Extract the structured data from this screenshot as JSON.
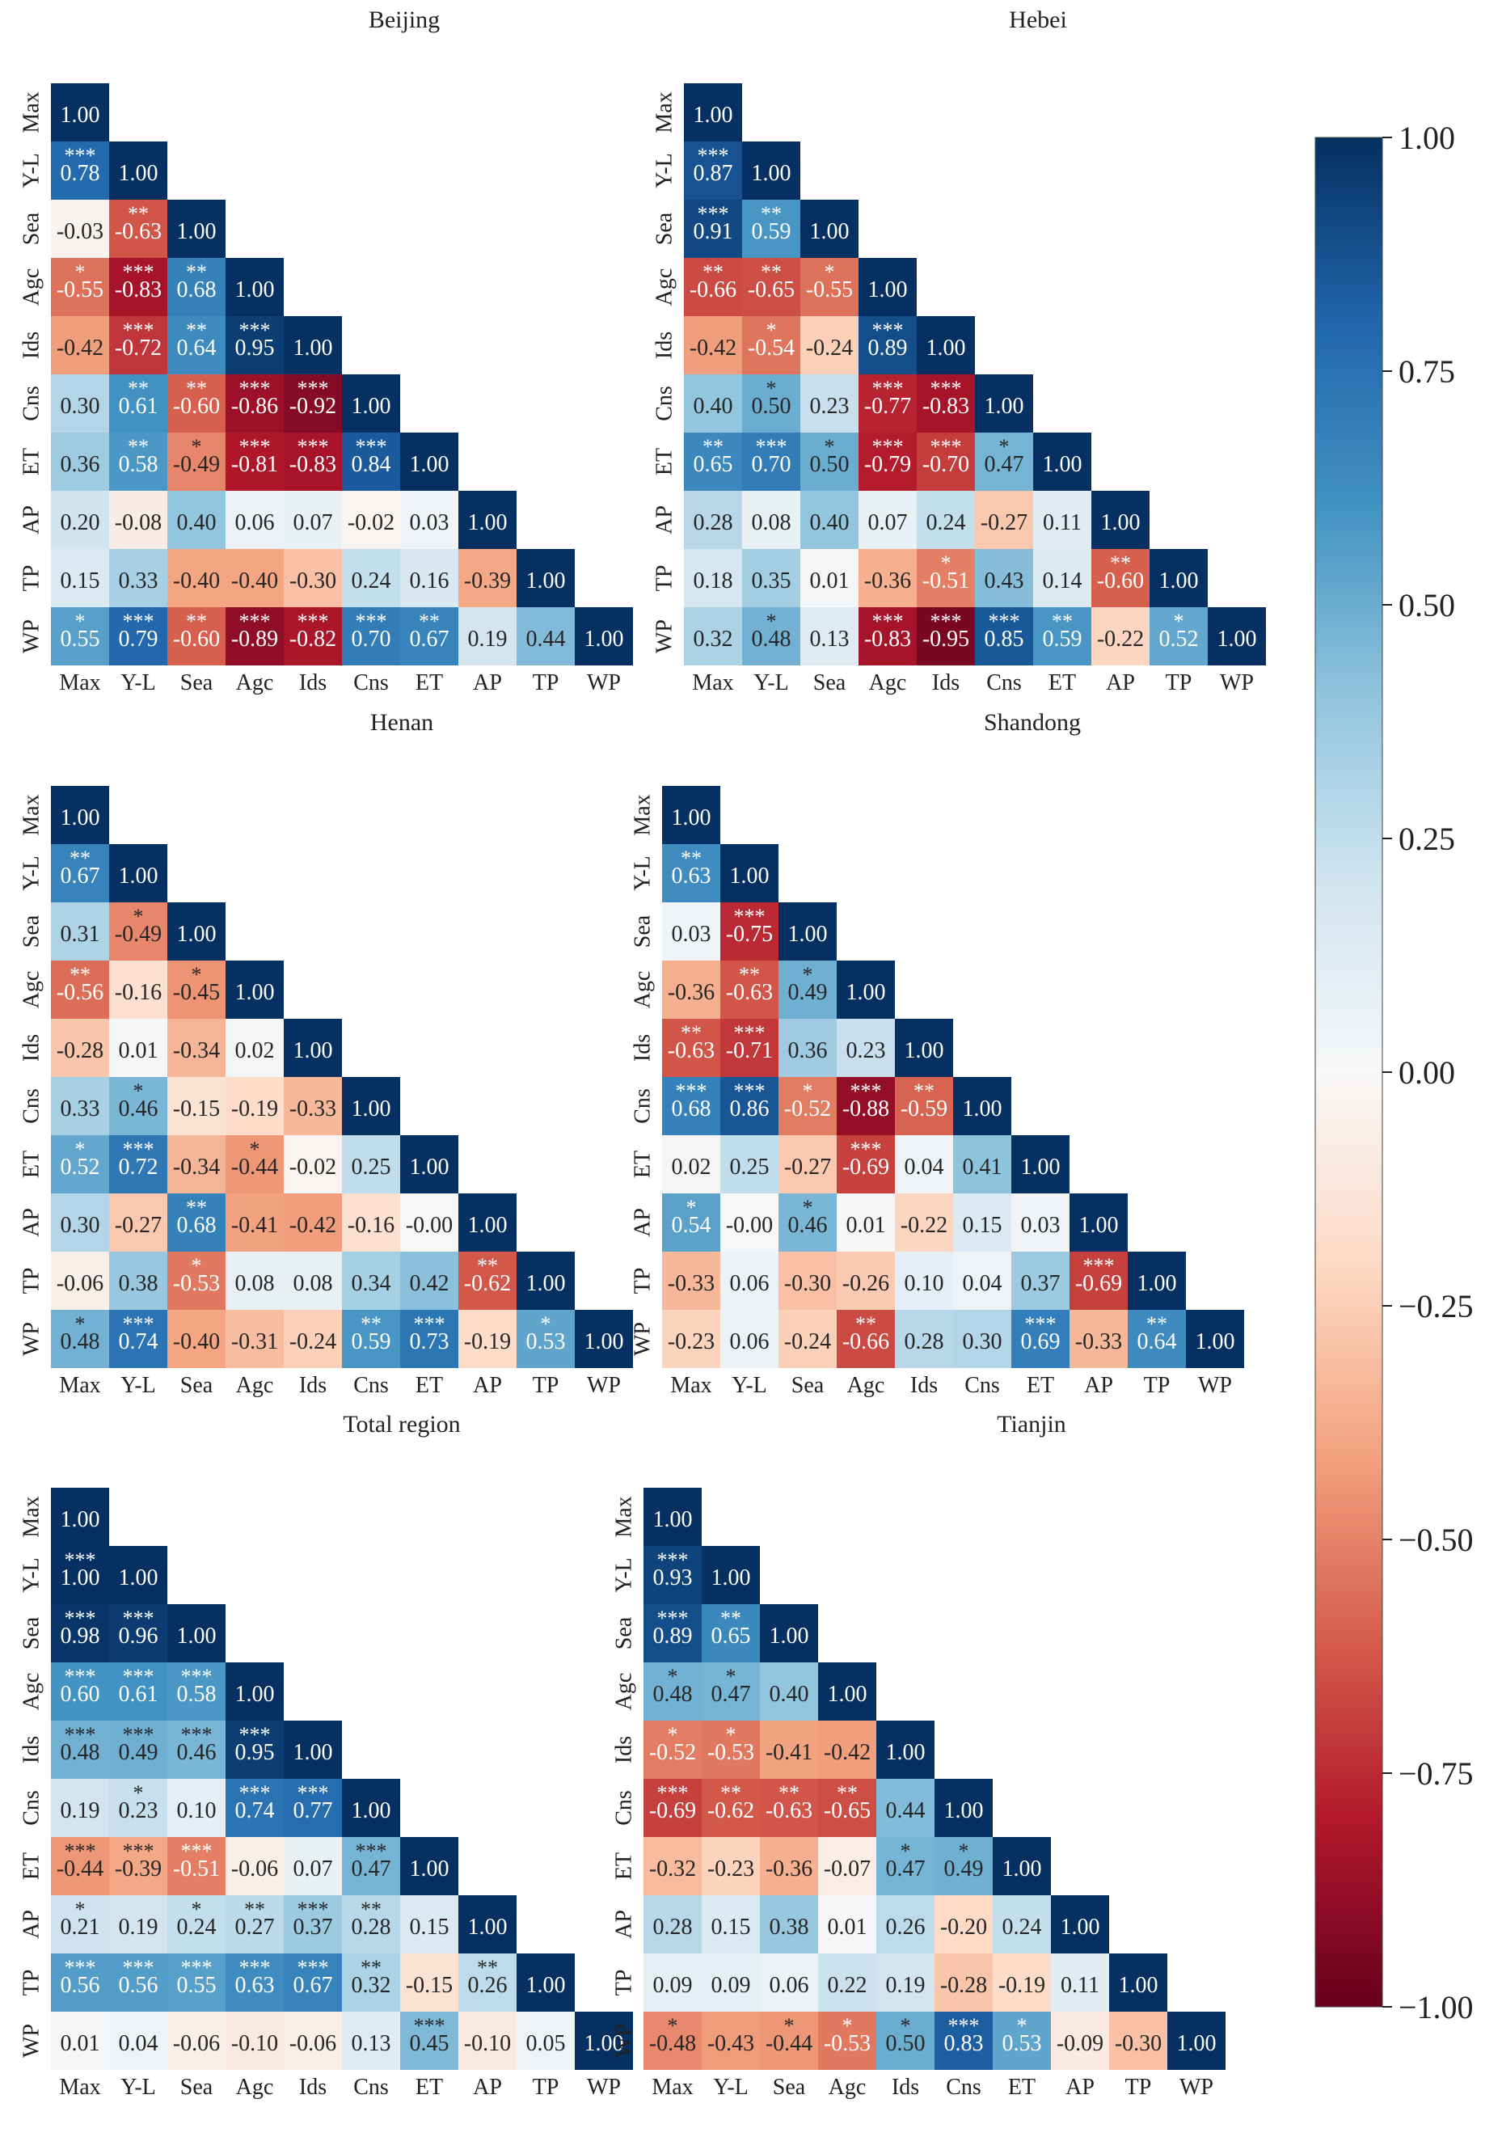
{
  "chart_data": [
    {
      "type": "heatmap",
      "title": "Beijing",
      "variables": [
        "Max",
        "Y-L",
        "Sea",
        "Agc",
        "Ids",
        "Cns",
        "ET",
        "AP",
        "TP",
        "WP"
      ],
      "matrix": [
        [
          "1.00"
        ],
        [
          "0.78",
          "1.00"
        ],
        [
          "-0.03",
          "-0.63",
          "1.00"
        ],
        [
          "-0.55",
          "-0.83",
          "0.68",
          "1.00"
        ],
        [
          "-0.42",
          "-0.72",
          "0.64",
          "0.95",
          "1.00"
        ],
        [
          "0.30",
          "0.61",
          "-0.60",
          "-0.86",
          "-0.92",
          "1.00"
        ],
        [
          "0.36",
          "0.58",
          "-0.49",
          "-0.81",
          "-0.83",
          "0.84",
          "1.00"
        ],
        [
          "0.20",
          "-0.08",
          "0.40",
          "0.06",
          "0.07",
          "-0.02",
          "0.03",
          "1.00"
        ],
        [
          "0.15",
          "0.33",
          "-0.40",
          "-0.40",
          "-0.30",
          "0.24",
          "0.16",
          "-0.39",
          "1.00"
        ],
        [
          "0.55",
          "0.79",
          "-0.60",
          "-0.89",
          "-0.82",
          "0.70",
          "0.67",
          "0.19",
          "0.44",
          "1.00"
        ]
      ],
      "significance": [
        [
          ""
        ],
        [
          "***",
          ""
        ],
        [
          "",
          "**",
          ""
        ],
        [
          "*",
          "***",
          "**",
          ""
        ],
        [
          "",
          "***",
          "**",
          "***",
          ""
        ],
        [
          "",
          "**",
          "**",
          "***",
          "***",
          ""
        ],
        [
          "",
          "**",
          "*",
          "***",
          "***",
          "***",
          ""
        ],
        [
          "",
          "",
          "",
          "",
          "",
          "",
          "",
          ""
        ],
        [
          "",
          "",
          "",
          "",
          "",
          "",
          "",
          "",
          ""
        ],
        [
          "*",
          "***",
          "**",
          "***",
          "***",
          "***",
          "**",
          "",
          "",
          ""
        ]
      ]
    },
    {
      "type": "heatmap",
      "title": "Hebei",
      "variables": [
        "Max",
        "Y-L",
        "Sea",
        "Agc",
        "Ids",
        "Cns",
        "ET",
        "AP",
        "TP",
        "WP"
      ],
      "matrix": [
        [
          "1.00"
        ],
        [
          "0.87",
          "1.00"
        ],
        [
          "0.91",
          "0.59",
          "1.00"
        ],
        [
          "-0.66",
          "-0.65",
          "-0.55",
          "1.00"
        ],
        [
          "-0.42",
          "-0.54",
          "-0.24",
          "0.89",
          "1.00"
        ],
        [
          "0.40",
          "0.50",
          "0.23",
          "-0.77",
          "-0.83",
          "1.00"
        ],
        [
          "0.65",
          "0.70",
          "0.50",
          "-0.79",
          "-0.70",
          "0.47",
          "1.00"
        ],
        [
          "0.28",
          "0.08",
          "0.40",
          "0.07",
          "0.24",
          "-0.27",
          "0.11",
          "1.00"
        ],
        [
          "0.18",
          "0.35",
          "0.01",
          "-0.36",
          "-0.51",
          "0.43",
          "0.14",
          "-0.60",
          "1.00"
        ],
        [
          "0.32",
          "0.48",
          "0.13",
          "-0.83",
          "-0.95",
          "0.85",
          "0.59",
          "-0.22",
          "0.52",
          "1.00"
        ]
      ],
      "significance": [
        [
          ""
        ],
        [
          "***",
          ""
        ],
        [
          "***",
          "**",
          ""
        ],
        [
          "**",
          "**",
          "*",
          ""
        ],
        [
          "",
          "*",
          "",
          "***",
          ""
        ],
        [
          "",
          "*",
          "",
          "***",
          "***",
          ""
        ],
        [
          "**",
          "***",
          "*",
          "***",
          "***",
          "*",
          ""
        ],
        [
          "",
          "",
          "",
          "",
          "",
          "",
          "",
          ""
        ],
        [
          "",
          "",
          "",
          "",
          "*",
          "",
          "",
          "**",
          ""
        ],
        [
          "",
          "*",
          "",
          "***",
          "***",
          "***",
          "**",
          "",
          "*",
          ""
        ]
      ]
    },
    {
      "type": "heatmap",
      "title": "Henan",
      "variables": [
        "Max",
        "Y-L",
        "Sea",
        "Agc",
        "Ids",
        "Cns",
        "ET",
        "AP",
        "TP",
        "WP"
      ],
      "matrix": [
        [
          "1.00"
        ],
        [
          "0.67",
          "1.00"
        ],
        [
          "0.31",
          "-0.49",
          "1.00"
        ],
        [
          "-0.56",
          "-0.16",
          "-0.45",
          "1.00"
        ],
        [
          "-0.28",
          "0.01",
          "-0.34",
          "0.02",
          "1.00"
        ],
        [
          "0.33",
          "0.46",
          "-0.15",
          "-0.19",
          "-0.33",
          "1.00"
        ],
        [
          "0.52",
          "0.72",
          "-0.34",
          "-0.44",
          "-0.02",
          "0.25",
          "1.00"
        ],
        [
          "0.30",
          "-0.27",
          "0.68",
          "-0.41",
          "-0.42",
          "-0.16",
          "-0.00",
          "1.00"
        ],
        [
          "-0.06",
          "0.38",
          "-0.53",
          "0.08",
          "0.08",
          "0.34",
          "0.42",
          "-0.62",
          "1.00"
        ],
        [
          "0.48",
          "0.74",
          "-0.40",
          "-0.31",
          "-0.24",
          "0.59",
          "0.73",
          "-0.19",
          "0.53",
          "1.00"
        ]
      ],
      "significance": [
        [
          ""
        ],
        [
          "**",
          ""
        ],
        [
          "",
          "*",
          ""
        ],
        [
          "**",
          "",
          "*",
          ""
        ],
        [
          "",
          "",
          "",
          "",
          ""
        ],
        [
          "",
          "*",
          "",
          "",
          "",
          ""
        ],
        [
          "*",
          "***",
          "",
          "*",
          "",
          "",
          ""
        ],
        [
          "",
          "",
          "**",
          "",
          "",
          "",
          "",
          ""
        ],
        [
          "",
          "",
          "*",
          "",
          "",
          "",
          "",
          "**",
          ""
        ],
        [
          "*",
          "***",
          "",
          "",
          "",
          "**",
          "***",
          "",
          "*",
          ""
        ]
      ]
    },
    {
      "type": "heatmap",
      "title": "Shandong",
      "variables": [
        "Max",
        "Y-L",
        "Sea",
        "Agc",
        "Ids",
        "Cns",
        "ET",
        "AP",
        "TP",
        "WP"
      ],
      "matrix": [
        [
          "1.00"
        ],
        [
          "0.63",
          "1.00"
        ],
        [
          "0.03",
          "-0.75",
          "1.00"
        ],
        [
          "-0.36",
          "-0.63",
          "0.49",
          "1.00"
        ],
        [
          "-0.63",
          "-0.71",
          "0.36",
          "0.23",
          "1.00"
        ],
        [
          "0.68",
          "0.86",
          "-0.52",
          "-0.88",
          "-0.59",
          "1.00"
        ],
        [
          "0.02",
          "0.25",
          "-0.27",
          "-0.69",
          "0.04",
          "0.41",
          "1.00"
        ],
        [
          "0.54",
          "-0.00",
          "0.46",
          "0.01",
          "-0.22",
          "0.15",
          "0.03",
          "1.00"
        ],
        [
          "-0.33",
          "0.06",
          "-0.30",
          "-0.26",
          "0.10",
          "0.04",
          "0.37",
          "-0.69",
          "1.00"
        ],
        [
          "-0.23",
          "0.06",
          "-0.24",
          "-0.66",
          "0.28",
          "0.30",
          "0.69",
          "-0.33",
          "0.64",
          "1.00"
        ]
      ],
      "significance": [
        [
          ""
        ],
        [
          "**",
          ""
        ],
        [
          "",
          "***",
          ""
        ],
        [
          "",
          "**",
          "*",
          ""
        ],
        [
          "**",
          "***",
          "",
          "",
          ""
        ],
        [
          "***",
          "***",
          "*",
          "***",
          "**",
          ""
        ],
        [
          "",
          "",
          "",
          "***",
          "",
          "",
          ""
        ],
        [
          "*",
          "",
          "*",
          "",
          "",
          "",
          "",
          ""
        ],
        [
          "",
          "",
          "",
          "",
          "",
          "",
          "",
          "***",
          ""
        ],
        [
          "",
          "",
          "",
          "**",
          "",
          "",
          "***",
          "",
          "**",
          ""
        ]
      ]
    },
    {
      "type": "heatmap",
      "title": "Total region",
      "variables": [
        "Max",
        "Y-L",
        "Sea",
        "Agc",
        "Ids",
        "Cns",
        "ET",
        "AP",
        "TP",
        "WP"
      ],
      "matrix": [
        [
          "1.00"
        ],
        [
          "1.00",
          "1.00"
        ],
        [
          "0.98",
          "0.96",
          "1.00"
        ],
        [
          "0.60",
          "0.61",
          "0.58",
          "1.00"
        ],
        [
          "0.48",
          "0.49",
          "0.46",
          "0.95",
          "1.00"
        ],
        [
          "0.19",
          "0.23",
          "0.10",
          "0.74",
          "0.77",
          "1.00"
        ],
        [
          "-0.44",
          "-0.39",
          "-0.51",
          "-0.06",
          "0.07",
          "0.47",
          "1.00"
        ],
        [
          "0.21",
          "0.19",
          "0.24",
          "0.27",
          "0.37",
          "0.28",
          "0.15",
          "1.00"
        ],
        [
          "0.56",
          "0.56",
          "0.55",
          "0.63",
          "0.67",
          "0.32",
          "-0.15",
          "0.26",
          "1.00"
        ],
        [
          "0.01",
          "0.04",
          "-0.06",
          "-0.10",
          "-0.06",
          "0.13",
          "0.45",
          "-0.10",
          "0.05",
          "1.00"
        ]
      ],
      "significance": [
        [
          ""
        ],
        [
          "***",
          ""
        ],
        [
          "***",
          "***",
          ""
        ],
        [
          "***",
          "***",
          "***",
          ""
        ],
        [
          "***",
          "***",
          "***",
          "***",
          ""
        ],
        [
          "",
          "*",
          "",
          "***",
          "***",
          ""
        ],
        [
          "***",
          "***",
          "***",
          "",
          "",
          "***",
          ""
        ],
        [
          "*",
          "",
          "*",
          "**",
          "***",
          "**",
          "",
          ""
        ],
        [
          "***",
          "***",
          "***",
          "***",
          "***",
          "**",
          "",
          "**",
          ""
        ],
        [
          "",
          "",
          "",
          "",
          "",
          "",
          "***",
          "",
          "",
          ""
        ]
      ]
    },
    {
      "type": "heatmap",
      "title": "Tianjin",
      "variables": [
        "Max",
        "Y-L",
        "Sea",
        "Agc",
        "Ids",
        "Cns",
        "ET",
        "AP",
        "TP",
        "WP"
      ],
      "matrix": [
        [
          "1.00"
        ],
        [
          "0.93",
          "1.00"
        ],
        [
          "0.89",
          "0.65",
          "1.00"
        ],
        [
          "0.48",
          "0.47",
          "0.40",
          "1.00"
        ],
        [
          "-0.52",
          "-0.53",
          "-0.41",
          "-0.42",
          "1.00"
        ],
        [
          "-0.69",
          "-0.62",
          "-0.63",
          "-0.65",
          "0.44",
          "1.00"
        ],
        [
          "-0.32",
          "-0.23",
          "-0.36",
          "-0.07",
          "0.47",
          "0.49",
          "1.00"
        ],
        [
          "0.28",
          "0.15",
          "0.38",
          "0.01",
          "0.26",
          "-0.20",
          "0.24",
          "1.00"
        ],
        [
          "0.09",
          "0.09",
          "0.06",
          "0.22",
          "0.19",
          "-0.28",
          "-0.19",
          "0.11",
          "1.00"
        ],
        [
          "-0.48",
          "-0.43",
          "-0.44",
          "-0.53",
          "0.50",
          "0.83",
          "0.53",
          "-0.09",
          "-0.30",
          "1.00"
        ]
      ],
      "significance": [
        [
          ""
        ],
        [
          "***",
          ""
        ],
        [
          "***",
          "**",
          ""
        ],
        [
          "*",
          "*",
          "",
          ""
        ],
        [
          "*",
          "*",
          "",
          "",
          ""
        ],
        [
          "***",
          "**",
          "**",
          "**",
          "",
          ""
        ],
        [
          "",
          "",
          "",
          "",
          "*",
          "*",
          ""
        ],
        [
          "",
          "",
          "",
          "",
          "",
          "",
          "",
          ""
        ],
        [
          "",
          "",
          "",
          "",
          "",
          "",
          "",
          "",
          ""
        ],
        [
          "*",
          "",
          "*",
          "*",
          "*",
          "***",
          "*",
          "",
          "",
          ""
        ]
      ]
    }
  ],
  "colorbar": {
    "ticks": [
      "1.00",
      "0.75",
      "0.50",
      "0.25",
      "0.00",
      "−0.25",
      "−0.50",
      "−0.75",
      "−1.00"
    ],
    "range": [
      -1,
      1
    ]
  },
  "colors": {
    "scale": [
      "#67001f",
      "#b2182b",
      "#d6604d",
      "#f4a582",
      "#fddbc7",
      "#f7f7f7",
      "#d1e5f0",
      "#92c5de",
      "#4393c3",
      "#2166ac",
      "#053061"
    ]
  }
}
